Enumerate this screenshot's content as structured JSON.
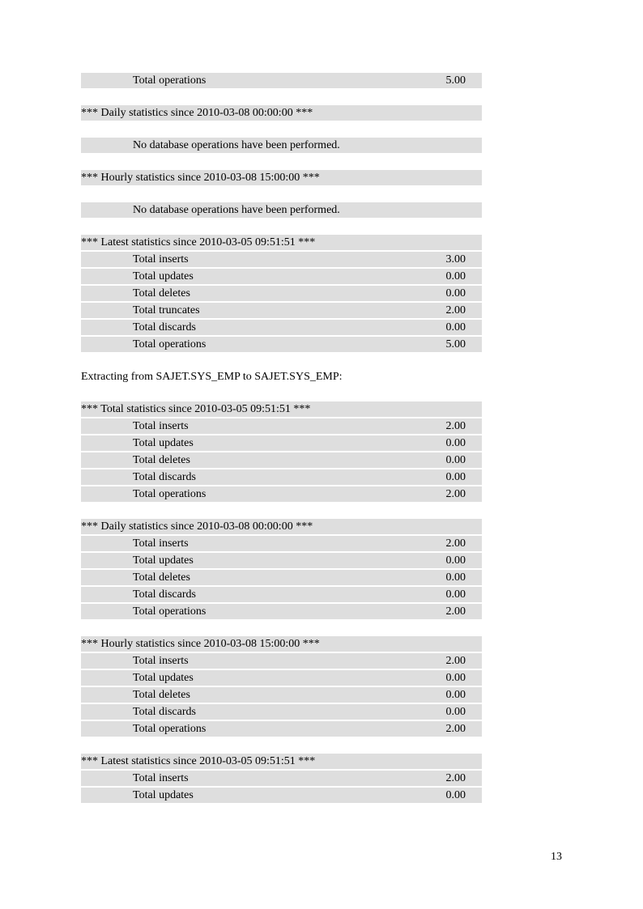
{
  "page_number": "13",
  "colors": {
    "row_bg": "#dedede",
    "text": "#000000",
    "page_bg": "#ffffff"
  },
  "blocks": [
    {
      "type": "stat_row",
      "label": "Total operations",
      "value": "5.00"
    },
    {
      "type": "gap"
    },
    {
      "type": "header",
      "text": "*** Daily statistics since 2010-03-08 00:00:00 ***"
    },
    {
      "type": "gap"
    },
    {
      "type": "message_row",
      "text": "No database operations have been performed."
    },
    {
      "type": "gap"
    },
    {
      "type": "header",
      "text": "*** Hourly statistics since 2010-03-08 15:00:00 ***"
    },
    {
      "type": "gap"
    },
    {
      "type": "message_row",
      "text": "No database operations have been performed."
    },
    {
      "type": "gap"
    },
    {
      "type": "header",
      "text": "*** Latest statistics since 2010-03-05 09:51:51 ***"
    },
    {
      "type": "stat_row",
      "label": "Total inserts",
      "value": "3.00"
    },
    {
      "type": "stat_row",
      "label": "Total updates",
      "value": "0.00"
    },
    {
      "type": "stat_row",
      "label": "Total deletes",
      "value": "0.00"
    },
    {
      "type": "stat_row",
      "label": "Total truncates",
      "value": "2.00"
    },
    {
      "type": "stat_row",
      "label": "Total discards",
      "value": "0.00"
    },
    {
      "type": "stat_row",
      "label": "Total operations",
      "value": "5.00"
    },
    {
      "type": "gap"
    },
    {
      "type": "plain",
      "text": "Extracting from SAJET.SYS_EMP to SAJET.SYS_EMP:"
    },
    {
      "type": "gap"
    },
    {
      "type": "header",
      "text": "*** Total statistics since 2010-03-05 09:51:51 ***"
    },
    {
      "type": "stat_row",
      "label": "Total inserts",
      "value": "2.00"
    },
    {
      "type": "stat_row",
      "label": "Total updates",
      "value": "0.00"
    },
    {
      "type": "stat_row",
      "label": "Total deletes",
      "value": "0.00"
    },
    {
      "type": "stat_row",
      "label": "Total discards",
      "value": "0.00"
    },
    {
      "type": "stat_row",
      "label": "Total operations",
      "value": "2.00"
    },
    {
      "type": "gap"
    },
    {
      "type": "header",
      "text": "*** Daily statistics since 2010-03-08 00:00:00 ***"
    },
    {
      "type": "stat_row",
      "label": "Total inserts",
      "value": "2.00"
    },
    {
      "type": "stat_row",
      "label": "Total updates",
      "value": "0.00"
    },
    {
      "type": "stat_row",
      "label": "Total deletes",
      "value": "0.00"
    },
    {
      "type": "stat_row",
      "label": "Total discards",
      "value": "0.00"
    },
    {
      "type": "stat_row",
      "label": "Total operations",
      "value": "2.00"
    },
    {
      "type": "gap"
    },
    {
      "type": "header",
      "text": "*** Hourly statistics since 2010-03-08 15:00:00 ***"
    },
    {
      "type": "stat_row",
      "label": "Total inserts",
      "value": "2.00"
    },
    {
      "type": "stat_row",
      "label": "Total updates",
      "value": "0.00"
    },
    {
      "type": "stat_row",
      "label": "Total deletes",
      "value": "0.00"
    },
    {
      "type": "stat_row",
      "label": "Total discards",
      "value": "0.00"
    },
    {
      "type": "stat_row",
      "label": "Total operations",
      "value": "2.00"
    },
    {
      "type": "gap"
    },
    {
      "type": "header",
      "text": "*** Latest statistics since 2010-03-05 09:51:51 ***"
    },
    {
      "type": "stat_row",
      "label": "Total inserts",
      "value": "2.00"
    },
    {
      "type": "stat_row",
      "label": "Total updates",
      "value": "0.00"
    }
  ]
}
